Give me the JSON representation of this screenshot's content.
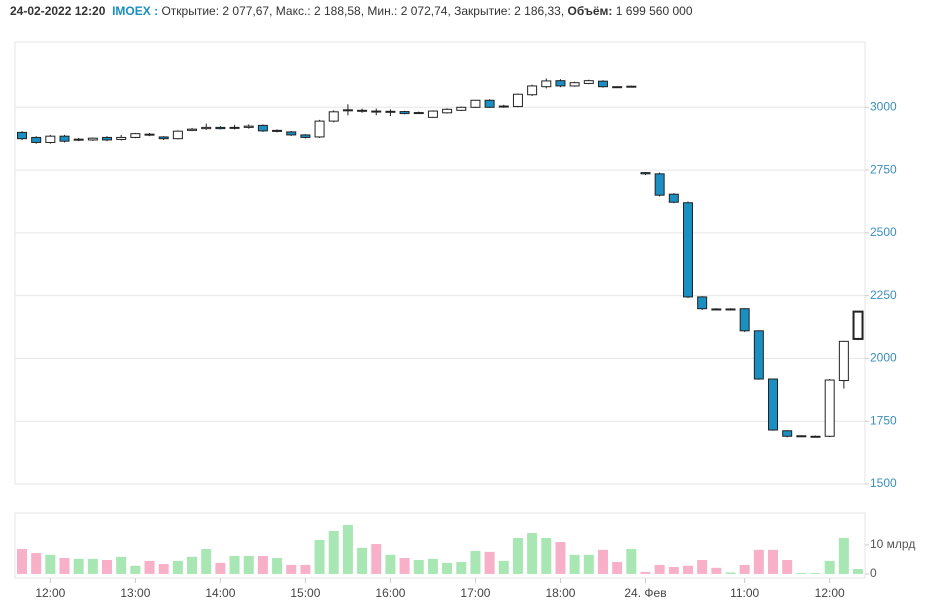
{
  "header": {
    "datetime": "24-02-2022 12:20",
    "symbol": "IMOEX :",
    "separator": ", ",
    "stats": [
      {
        "label": "Открытие:",
        "value": "2 077,67"
      },
      {
        "label": "Макс.:",
        "value": "2 188,58"
      },
      {
        "label": "Мин.:",
        "value": "2 072,74"
      },
      {
        "label": "Закрытие:",
        "value": "2 186,33"
      }
    ],
    "volume_label": "Объём:",
    "volume_value": "1 699 560 000"
  },
  "chart_data": [
    {
      "type": "candlestick",
      "categories": [
        null,
        null,
        "12:00",
        null,
        null,
        null,
        null,
        null,
        "13:00",
        null,
        null,
        null,
        null,
        null,
        "14:00",
        null,
        null,
        null,
        null,
        null,
        "15:00",
        null,
        null,
        null,
        null,
        null,
        "16:00",
        null,
        null,
        null,
        null,
        null,
        "17:00",
        null,
        null,
        null,
        null,
        null,
        "18:00",
        null,
        null,
        null,
        null,
        null,
        "24. Фев",
        null,
        null,
        null,
        null,
        null,
        null,
        "11:00",
        null,
        null,
        null,
        null,
        null,
        "12:00",
        null,
        null
      ],
      "open": [
        2900,
        2880,
        2860,
        2885,
        2870,
        2870,
        2880,
        2872,
        2880,
        2893,
        2882,
        2875,
        2908,
        2915,
        2920,
        2918,
        2920,
        2928,
        2905,
        2902,
        2890,
        2882,
        2945,
        2987,
        2985,
        2985,
        2982,
        2983,
        2977,
        2960,
        2978,
        2988,
        3000,
        3028,
        3002,
        3003,
        3050,
        3082,
        3106,
        3085,
        3095,
        3104,
        3082,
        3082,
        2740,
        2735,
        2654,
        2620,
        2245,
        2197,
        2196,
        2198,
        2110,
        1918,
        1712,
        1690,
        1690,
        1690,
        1912,
        2077.67
      ],
      "high": [
        2905,
        2885,
        2890,
        2890,
        2878,
        2880,
        2885,
        2890,
        2898,
        2898,
        2885,
        2908,
        2918,
        2935,
        2925,
        2930,
        2932,
        2932,
        2912,
        2906,
        2893,
        2950,
        2988,
        3012,
        2995,
        2995,
        2992,
        2986,
        2983,
        2988,
        2996,
        3003,
        3030,
        3032,
        3010,
        3055,
        3090,
        3115,
        3112,
        3102,
        3110,
        3108,
        3084,
        3086,
        2742,
        2740,
        2658,
        2625,
        2248,
        2200,
        2200,
        2200,
        2112,
        1920,
        1714,
        1694,
        1693,
        1918,
        2070,
        2188.58
      ],
      "low": [
        2870,
        2855,
        2855,
        2860,
        2865,
        2866,
        2865,
        2868,
        2877,
        2885,
        2870,
        2872,
        2905,
        2910,
        2912,
        2912,
        2915,
        2902,
        2900,
        2886,
        2876,
        2878,
        2940,
        2968,
        2978,
        2968,
        2965,
        2972,
        2974,
        2958,
        2975,
        2985,
        2998,
        2997,
        2998,
        3000,
        3045,
        3075,
        3080,
        3082,
        3092,
        3078,
        3078,
        3080,
        2730,
        2645,
        2618,
        2240,
        2193,
        2192,
        2192,
        2105,
        1915,
        1712,
        1686,
        1688,
        1687,
        1687,
        1880,
        2072.74
      ],
      "close": [
        2875,
        2860,
        2885,
        2865,
        2873,
        2877,
        2870,
        2880,
        2895,
        2890,
        2875,
        2905,
        2913,
        2920,
        2915,
        2920,
        2925,
        2906,
        2908,
        2890,
        2880,
        2945,
        2982,
        2990,
        2988,
        2982,
        2984,
        2975,
        2979,
        2985,
        2992,
        3000,
        3028,
        3000,
        3005,
        3052,
        3085,
        3105,
        3085,
        3098,
        3106,
        3082,
        3080,
        3084,
        2735,
        2650,
        2622,
        2245,
        2198,
        2195,
        2197,
        2110,
        1918,
        1715,
        1690,
        1692,
        1690,
        1914,
        2068,
        2186.33
      ],
      "up_color": "#ffffff",
      "down_color": "#1a8fc2",
      "ylim": [
        1500,
        3260
      ],
      "yticks": [
        1500,
        1750,
        2000,
        2250,
        2500,
        2750,
        3000
      ],
      "grid": true
    },
    {
      "type": "bar",
      "values": [
        8.6,
        7.2,
        6.6,
        5.5,
        5.2,
        5.2,
        4.8,
        5.9,
        2.8,
        4.5,
        3.4,
        4.5,
        5.9,
        8.6,
        3.8,
        6.2,
        6.2,
        6.2,
        5.5,
        3.1,
        3.1,
        11.7,
        14.8,
        16.9,
        9.0,
        10.3,
        6.6,
        5.5,
        4.8,
        5.2,
        3.8,
        4.1,
        7.9,
        7.6,
        4.5,
        12.4,
        14.1,
        12.4,
        11.0,
        6.6,
        6.6,
        8.3,
        4.1,
        8.6,
        0.7,
        3.1,
        2.4,
        2.8,
        4.8,
        2.1,
        0.5,
        3.1,
        8.3,
        8.3,
        4.8,
        0.3,
        0.3,
        4.5,
        12.4,
        1.7
      ],
      "up_color": "#a8e6b4",
      "down_color": "#f7b0c8",
      "ylim": [
        -1.4,
        21
      ],
      "yticks": [
        0,
        {
          "value": 10,
          "label": "10 млрд"
        }
      ]
    }
  ]
}
